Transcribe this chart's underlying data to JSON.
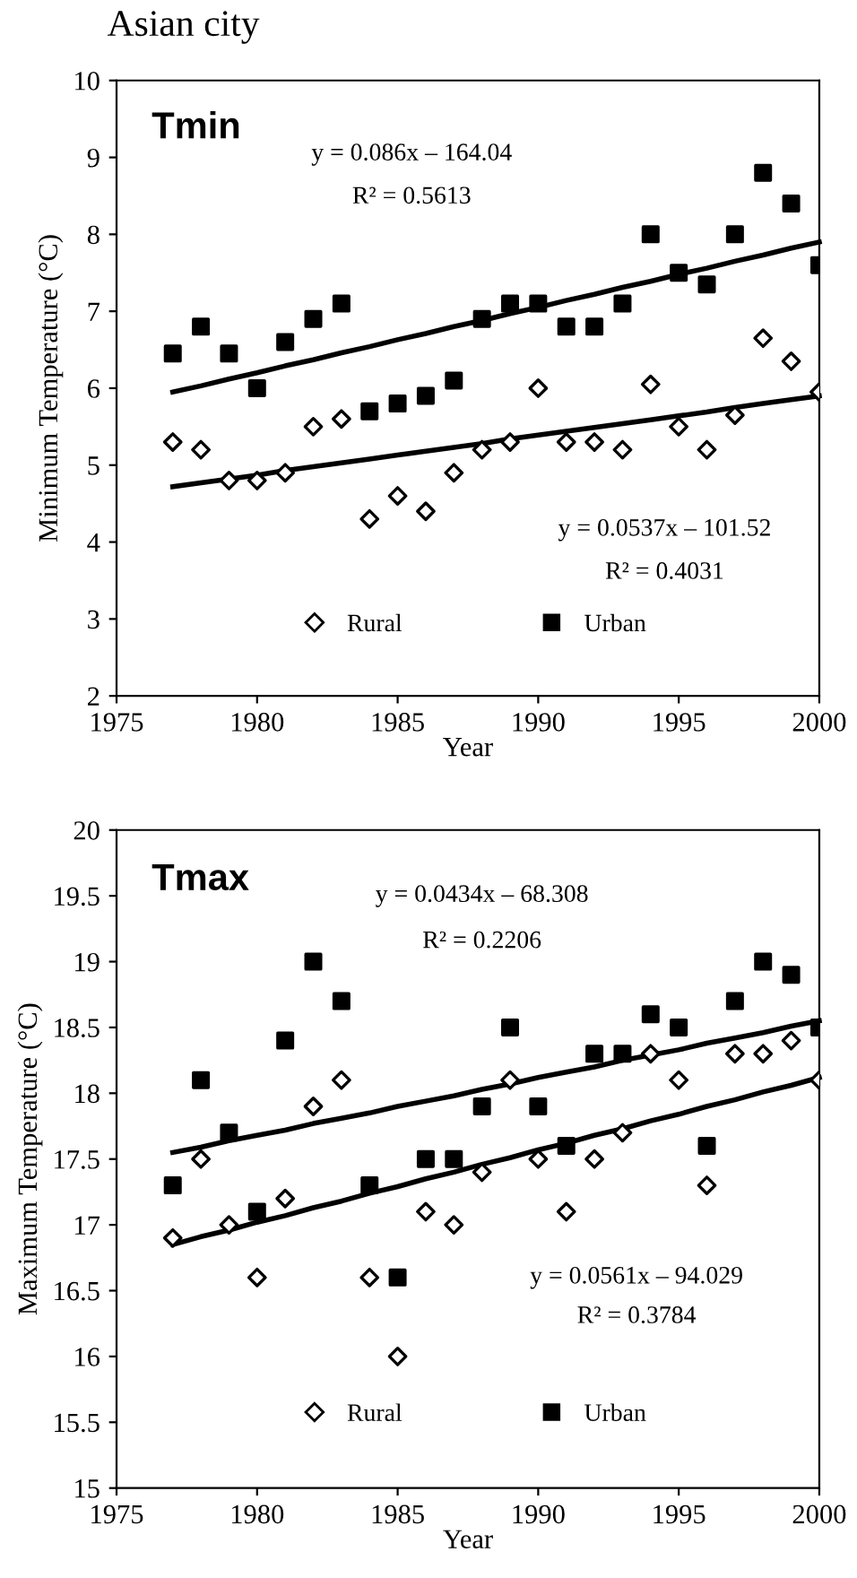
{
  "chart_data": [
    {
      "type": "scatter",
      "title": "Tmin",
      "xlabel": "Year",
      "ylabel": "Minimum Temperature (°C)",
      "xlim": [
        1975,
        2000
      ],
      "xticks": [
        1975,
        1980,
        1985,
        1990,
        1995,
        2000
      ],
      "ylim": [
        2,
        10
      ],
      "yticks": [
        2,
        3,
        4,
        5,
        6,
        7,
        8,
        9,
        10
      ],
      "grid": false,
      "legend": "bottom",
      "x": [
        1977,
        1978,
        1979,
        1980,
        1981,
        1982,
        1983,
        1984,
        1985,
        1986,
        1987,
        1988,
        1989,
        1990,
        1991,
        1992,
        1993,
        1994,
        1995,
        1996,
        1997,
        1998,
        1999,
        2000
      ],
      "series": [
        {
          "name": "Rural",
          "marker": "diamond",
          "color": "#000000",
          "values": [
            5.3,
            5.2,
            4.8,
            4.8,
            4.9,
            5.5,
            5.6,
            4.3,
            4.6,
            4.4,
            4.9,
            5.2,
            5.3,
            6.0,
            5.3,
            5.3,
            5.2,
            6.05,
            5.5,
            5.2,
            5.65,
            6.65,
            6.35,
            5.95
          ]
        },
        {
          "name": "Urban",
          "marker": "square",
          "color": "#000000",
          "values": [
            6.45,
            6.8,
            6.45,
            6.0,
            6.6,
            6.9,
            7.1,
            5.7,
            5.8,
            5.9,
            6.1,
            6.9,
            7.1,
            7.1,
            6.8,
            6.8,
            7.1,
            8.0,
            7.5,
            7.35,
            8.0,
            8.8,
            8.4,
            7.6
          ]
        },
        {
          "type": "line",
          "color": "#000000",
          "values": [
            5.95,
            6.03,
            6.12,
            6.2,
            6.29,
            6.37,
            6.46,
            6.54,
            6.63,
            6.71,
            6.8,
            6.88,
            6.97,
            7.05,
            7.14,
            7.22,
            7.31,
            7.39,
            7.48,
            7.56,
            7.65,
            7.73,
            7.82,
            7.9
          ]
        },
        {
          "type": "line",
          "color": "#000000",
          "values": [
            4.72,
            4.77,
            4.82,
            4.87,
            4.93,
            4.98,
            5.03,
            5.08,
            5.13,
            5.18,
            5.23,
            5.28,
            5.34,
            5.39,
            5.44,
            5.49,
            5.54,
            5.59,
            5.64,
            5.69,
            5.75,
            5.8,
            5.85,
            5.9
          ]
        }
      ],
      "annotations": [
        "Asian city",
        "y = 0.086x – 164.04",
        "R² = 0.5613",
        "y = 0.0537x – 101.52",
        "R² = 0.4031"
      ]
    },
    {
      "type": "scatter",
      "title": "Tmax",
      "xlabel": "Year",
      "ylabel": "Maximum Temperature (°C)",
      "xlim": [
        1975,
        2000
      ],
      "xticks": [
        1975,
        1980,
        1985,
        1990,
        1995,
        2000
      ],
      "ylim": [
        15,
        20
      ],
      "yticks": [
        15,
        15.5,
        16,
        16.5,
        17,
        17.5,
        18,
        18.5,
        19,
        19.5,
        20
      ],
      "grid": false,
      "legend": "bottom",
      "x": [
        1977,
        1978,
        1979,
        1980,
        1981,
        1982,
        1983,
        1984,
        1985,
        1986,
        1987,
        1988,
        1989,
        1990,
        1991,
        1992,
        1993,
        1994,
        1995,
        1996,
        1997,
        1998,
        1999,
        2000
      ],
      "series": [
        {
          "name": "Rural",
          "marker": "diamond",
          "color": "#000000",
          "values": [
            16.9,
            17.5,
            17.0,
            16.6,
            17.2,
            17.9,
            18.1,
            16.6,
            16.0,
            17.1,
            17.0,
            17.4,
            18.1,
            17.5,
            17.1,
            17.5,
            17.7,
            18.3,
            18.1,
            17.3,
            18.3,
            18.3,
            18.4,
            18.1
          ]
        },
        {
          "name": "Urban",
          "marker": "square",
          "color": "#000000",
          "values": [
            17.3,
            18.1,
            17.7,
            17.1,
            18.4,
            19.0,
            18.7,
            17.3,
            16.6,
            17.5,
            17.5,
            17.9,
            18.5,
            17.9,
            17.6,
            18.3,
            18.3,
            18.6,
            18.5,
            17.6,
            18.7,
            19.0,
            18.9,
            18.5
          ]
        },
        {
          "type": "line",
          "color": "#000000",
          "values": [
            17.55,
            17.59,
            17.64,
            17.68,
            17.72,
            17.77,
            17.81,
            17.85,
            17.9,
            17.94,
            17.98,
            18.03,
            18.07,
            18.12,
            18.16,
            18.2,
            18.25,
            18.29,
            18.33,
            18.38,
            18.42,
            18.46,
            18.51,
            18.55
          ]
        },
        {
          "type": "line",
          "color": "#000000",
          "values": [
            16.85,
            16.91,
            16.96,
            17.02,
            17.07,
            17.13,
            17.18,
            17.24,
            17.29,
            17.35,
            17.4,
            17.46,
            17.51,
            17.57,
            17.62,
            17.68,
            17.73,
            17.79,
            17.84,
            17.9,
            17.95,
            18.01,
            18.06,
            18.12
          ]
        }
      ],
      "annotations": [
        "y = 0.0434x – 68.308",
        "R² = 0.2206",
        "y = 0.0561x – 94.029",
        "R² = 0.3784"
      ]
    }
  ]
}
